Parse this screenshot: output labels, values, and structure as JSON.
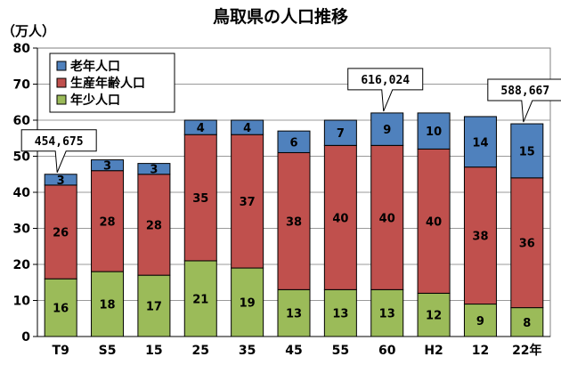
{
  "chart_data": {
    "type": "bar",
    "stacked": true,
    "title": "鳥取県の人口推移",
    "unit_label": "（万人）",
    "categories": [
      "T9",
      "S5",
      "15",
      "25",
      "35",
      "45",
      "55",
      "60",
      "H2",
      "12",
      "22年"
    ],
    "ylim": [
      0,
      80
    ],
    "yticks": [
      0,
      10,
      20,
      30,
      40,
      50,
      60,
      70,
      80
    ],
    "grid": true,
    "legend_position": "top-left",
    "series": [
      {
        "name": "年少人口",
        "color": "#9bbb59",
        "values": [
          16,
          18,
          17,
          21,
          19,
          13,
          13,
          13,
          12,
          9,
          8
        ]
      },
      {
        "name": "生産年齢人口",
        "color": "#c0504d",
        "values": [
          26,
          28,
          28,
          35,
          37,
          38,
          40,
          40,
          40,
          38,
          36
        ]
      },
      {
        "name": "老年人口",
        "color": "#4f81bd",
        "values": [
          3,
          3,
          3,
          4,
          4,
          6,
          7,
          9,
          10,
          14,
          15
        ]
      }
    ],
    "legend_order": [
      "老年人口",
      "生産年齢人口",
      "年少人口"
    ],
    "annotations": [
      {
        "category": "T9",
        "text": "454,675"
      },
      {
        "category": "60",
        "text": "616,024"
      },
      {
        "category": "22年",
        "text": "588,667"
      }
    ]
  }
}
